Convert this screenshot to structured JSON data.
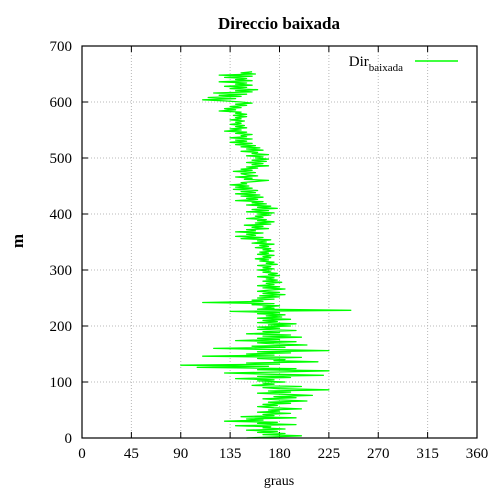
{
  "chart_data": {
    "type": "line",
    "title": "Direccio baixada",
    "xlabel": "graus",
    "ylabel": "m",
    "xlim": [
      0,
      360
    ],
    "ylim": [
      0,
      700
    ],
    "xticks": [
      0,
      45,
      90,
      135,
      180,
      225,
      270,
      315,
      360
    ],
    "yticks": [
      0,
      100,
      200,
      300,
      400,
      500,
      600,
      700
    ],
    "grid": true,
    "legend_position": "top-right",
    "series_color": "#00ff00",
    "series": [
      {
        "name": "Dir",
        "name_subscript": "baixada",
        "points": [
          [
            150,
            0
          ],
          [
            175,
            2
          ],
          [
            200,
            4
          ],
          [
            165,
            6
          ],
          [
            185,
            8
          ],
          [
            160,
            10
          ],
          [
            178,
            12
          ],
          [
            150,
            14
          ],
          [
            185,
            16
          ],
          [
            165,
            18
          ],
          [
            172,
            20
          ],
          [
            140,
            22
          ],
          [
            195,
            24
          ],
          [
            160,
            26
          ],
          [
            178,
            28
          ],
          [
            130,
            30
          ],
          [
            165,
            32
          ],
          [
            150,
            34
          ],
          [
            195,
            36
          ],
          [
            145,
            38
          ],
          [
            175,
            40
          ],
          [
            165,
            42
          ],
          [
            190,
            44
          ],
          [
            160,
            46
          ],
          [
            180,
            48
          ],
          [
            170,
            50
          ],
          [
            200,
            52
          ],
          [
            175,
            54
          ],
          [
            160,
            56
          ],
          [
            178,
            58
          ],
          [
            165,
            60
          ],
          [
            190,
            62
          ],
          [
            170,
            64
          ],
          [
            205,
            66
          ],
          [
            180,
            68
          ],
          [
            165,
            70
          ],
          [
            195,
            72
          ],
          [
            175,
            74
          ],
          [
            210,
            76
          ],
          [
            185,
            78
          ],
          [
            160,
            80
          ],
          [
            190,
            82
          ],
          [
            170,
            84
          ],
          [
            225,
            86
          ],
          [
            180,
            88
          ],
          [
            165,
            90
          ],
          [
            200,
            92
          ],
          [
            155,
            94
          ],
          [
            175,
            96
          ],
          [
            165,
            98
          ],
          [
            185,
            100
          ],
          [
            160,
            102
          ],
          [
            175,
            104
          ],
          [
            140,
            106
          ],
          [
            190,
            108
          ],
          [
            160,
            110
          ],
          [
            220,
            112
          ],
          [
            170,
            114
          ],
          [
            130,
            116
          ],
          [
            185,
            118
          ],
          [
            225,
            120
          ],
          [
            160,
            122
          ],
          [
            195,
            124
          ],
          [
            105,
            126
          ],
          [
            170,
            128
          ],
          [
            90,
            130
          ],
          [
            180,
            132
          ],
          [
            150,
            134
          ],
          [
            215,
            136
          ],
          [
            175,
            138
          ],
          [
            185,
            140
          ],
          [
            160,
            142
          ],
          [
            200,
            144
          ],
          [
            110,
            146
          ],
          [
            175,
            148
          ],
          [
            150,
            150
          ],
          [
            190,
            152
          ],
          [
            160,
            154
          ],
          [
            225,
            156
          ],
          [
            170,
            158
          ],
          [
            120,
            160
          ],
          [
            185,
            162
          ],
          [
            155,
            164
          ],
          [
            205,
            166
          ],
          [
            175,
            168
          ],
          [
            160,
            170
          ],
          [
            195,
            172
          ],
          [
            140,
            174
          ],
          [
            180,
            176
          ],
          [
            160,
            178
          ],
          [
            200,
            180
          ],
          [
            165,
            182
          ],
          [
            190,
            184
          ],
          [
            150,
            186
          ],
          [
            180,
            188
          ],
          [
            165,
            190
          ],
          [
            195,
            192
          ],
          [
            160,
            194
          ],
          [
            180,
            196
          ],
          [
            160,
            198
          ],
          [
            190,
            200
          ],
          [
            170,
            202
          ],
          [
            195,
            204
          ],
          [
            160,
            206
          ],
          [
            178,
            208
          ],
          [
            165,
            210
          ],
          [
            190,
            212
          ],
          [
            160,
            214
          ],
          [
            182,
            216
          ],
          [
            168,
            218
          ],
          [
            185,
            220
          ],
          [
            160,
            222
          ],
          [
            180,
            224
          ],
          [
            135,
            226
          ],
          [
            245,
            228
          ],
          [
            160,
            230
          ],
          [
            175,
            232
          ],
          [
            165,
            234
          ],
          [
            180,
            236
          ],
          [
            155,
            238
          ],
          [
            175,
            240
          ],
          [
            110,
            242
          ],
          [
            165,
            244
          ],
          [
            155,
            246
          ],
          [
            175,
            248
          ],
          [
            160,
            250
          ],
          [
            180,
            252
          ],
          [
            162,
            254
          ],
          [
            185,
            256
          ],
          [
            165,
            258
          ],
          [
            180,
            260
          ],
          [
            160,
            262
          ],
          [
            170,
            264
          ],
          [
            185,
            266
          ],
          [
            165,
            268
          ],
          [
            180,
            270
          ],
          [
            160,
            272
          ],
          [
            175,
            274
          ],
          [
            168,
            276
          ],
          [
            182,
            278
          ],
          [
            165,
            280
          ],
          [
            178,
            282
          ],
          [
            168,
            284
          ],
          [
            175,
            286
          ],
          [
            160,
            288
          ],
          [
            180,
            290
          ],
          [
            170,
            292
          ],
          [
            178,
            294
          ],
          [
            165,
            296
          ],
          [
            172,
            298
          ],
          [
            160,
            300
          ],
          [
            175,
            302
          ],
          [
            165,
            304
          ],
          [
            172,
            306
          ],
          [
            160,
            308
          ],
          [
            178,
            310
          ],
          [
            168,
            312
          ],
          [
            175,
            314
          ],
          [
            162,
            316
          ],
          [
            170,
            318
          ],
          [
            158,
            320
          ],
          [
            172,
            322
          ],
          [
            165,
            324
          ],
          [
            175,
            326
          ],
          [
            160,
            328
          ],
          [
            170,
            330
          ],
          [
            162,
            332
          ],
          [
            175,
            334
          ],
          [
            165,
            336
          ],
          [
            172,
            338
          ],
          [
            158,
            340
          ],
          [
            170,
            342
          ],
          [
            162,
            344
          ],
          [
            175,
            346
          ],
          [
            155,
            348
          ],
          [
            168,
            350
          ],
          [
            160,
            352
          ],
          [
            172,
            354
          ],
          [
            145,
            356
          ],
          [
            165,
            358
          ],
          [
            140,
            360
          ],
          [
            158,
            362
          ],
          [
            150,
            364
          ],
          [
            165,
            366
          ],
          [
            140,
            368
          ],
          [
            158,
            370
          ],
          [
            150,
            372
          ],
          [
            170,
            374
          ],
          [
            155,
            376
          ],
          [
            165,
            378
          ],
          [
            148,
            380
          ],
          [
            172,
            382
          ],
          [
            158,
            384
          ],
          [
            175,
            386
          ],
          [
            160,
            388
          ],
          [
            168,
            390
          ],
          [
            150,
            392
          ],
          [
            165,
            394
          ],
          [
            158,
            396
          ],
          [
            172,
            398
          ],
          [
            160,
            400
          ],
          [
            175,
            402
          ],
          [
            150,
            404
          ],
          [
            170,
            406
          ],
          [
            155,
            408
          ],
          [
            178,
            410
          ],
          [
            160,
            412
          ],
          [
            172,
            414
          ],
          [
            150,
            416
          ],
          [
            168,
            418
          ],
          [
            155,
            420
          ],
          [
            165,
            422
          ],
          [
            140,
            424
          ],
          [
            160,
            426
          ],
          [
            150,
            428
          ],
          [
            165,
            430
          ],
          [
            145,
            432
          ],
          [
            162,
            434
          ],
          [
            140,
            436
          ],
          [
            158,
            438
          ],
          [
            145,
            440
          ],
          [
            160,
            442
          ],
          [
            138,
            444
          ],
          [
            155,
            446
          ],
          [
            140,
            448
          ],
          [
            152,
            450
          ],
          [
            135,
            452
          ],
          [
            150,
            454
          ],
          [
            145,
            456
          ],
          [
            158,
            458
          ],
          [
            170,
            460
          ],
          [
            148,
            462
          ],
          [
            155,
            464
          ],
          [
            140,
            466
          ],
          [
            160,
            468
          ],
          [
            150,
            470
          ],
          [
            145,
            472
          ],
          [
            158,
            474
          ],
          [
            138,
            476
          ],
          [
            155,
            478
          ],
          [
            145,
            480
          ],
          [
            160,
            482
          ],
          [
            150,
            484
          ],
          [
            170,
            486
          ],
          [
            155,
            488
          ],
          [
            165,
            490
          ],
          [
            150,
            492
          ],
          [
            168,
            494
          ],
          [
            155,
            496
          ],
          [
            170,
            498
          ],
          [
            158,
            500
          ],
          [
            165,
            502
          ],
          [
            150,
            504
          ],
          [
            170,
            506
          ],
          [
            155,
            508
          ],
          [
            160,
            510
          ],
          [
            145,
            512
          ],
          [
            165,
            514
          ],
          [
            150,
            516
          ],
          [
            162,
            518
          ],
          [
            145,
            520
          ],
          [
            158,
            522
          ],
          [
            140,
            524
          ],
          [
            155,
            526
          ],
          [
            135,
            528
          ],
          [
            150,
            530
          ],
          [
            140,
            532
          ],
          [
            155,
            534
          ],
          [
            135,
            536
          ],
          [
            150,
            538
          ],
          [
            145,
            540
          ],
          [
            155,
            542
          ],
          [
            140,
            544
          ],
          [
            150,
            546
          ],
          [
            130,
            548
          ],
          [
            145,
            550
          ],
          [
            135,
            552
          ],
          [
            150,
            554
          ],
          [
            140,
            556
          ],
          [
            148,
            558
          ],
          [
            135,
            560
          ],
          [
            145,
            562
          ],
          [
            140,
            564
          ],
          [
            148,
            566
          ],
          [
            135,
            568
          ],
          [
            145,
            570
          ],
          [
            140,
            572
          ],
          [
            150,
            574
          ],
          [
            138,
            576
          ],
          [
            150,
            578
          ],
          [
            140,
            580
          ],
          [
            145,
            582
          ],
          [
            125,
            584
          ],
          [
            140,
            586
          ],
          [
            130,
            588
          ],
          [
            145,
            590
          ],
          [
            135,
            592
          ],
          [
            150,
            594
          ],
          [
            140,
            596
          ],
          [
            155,
            598
          ],
          [
            145,
            600
          ],
          [
            130,
            602
          ],
          [
            110,
            604
          ],
          [
            140,
            606
          ],
          [
            115,
            608
          ],
          [
            145,
            610
          ],
          [
            125,
            612
          ],
          [
            150,
            614
          ],
          [
            120,
            616
          ],
          [
            155,
            618
          ],
          [
            140,
            620
          ],
          [
            160,
            622
          ],
          [
            135,
            624
          ],
          [
            150,
            626
          ],
          [
            130,
            628
          ],
          [
            155,
            630
          ],
          [
            140,
            632
          ],
          [
            150,
            634
          ],
          [
            125,
            636
          ],
          [
            155,
            638
          ],
          [
            140,
            640
          ],
          [
            150,
            642
          ],
          [
            130,
            644
          ],
          [
            155,
            646
          ],
          [
            125,
            648
          ],
          [
            158,
            650
          ],
          [
            145,
            652
          ],
          [
            155,
            654
          ]
        ]
      }
    ]
  }
}
